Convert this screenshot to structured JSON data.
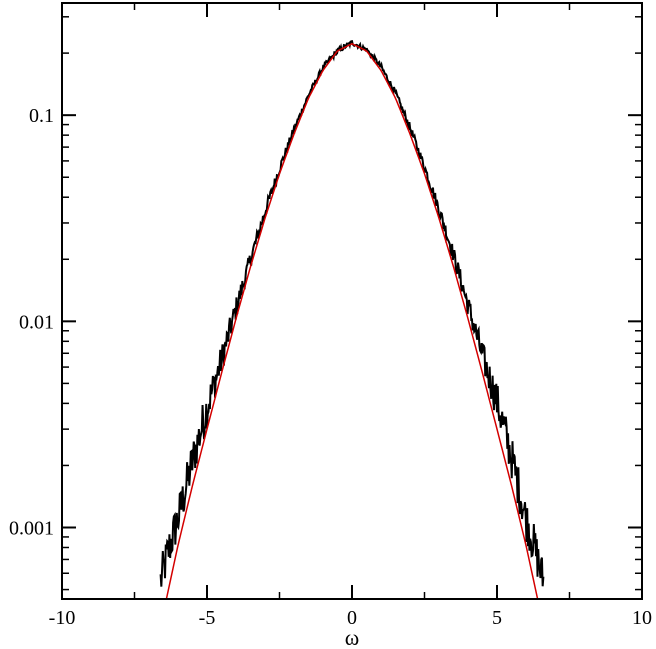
{
  "chart_data": {
    "type": "line",
    "title": "",
    "xlabel": "ω",
    "ylabel": "",
    "xlim": [
      -10,
      10
    ],
    "ylim": [
      0.00045,
      0.35
    ],
    "yscale": "log",
    "grid": false,
    "x_ticks": [
      -10,
      -5,
      0,
      5,
      10
    ],
    "x_tick_labels": [
      "-10",
      "-5",
      "0",
      "5",
      "10"
    ],
    "y_ticks": [
      0.001,
      0.01,
      0.1
    ],
    "y_tick_labels": [
      "0.001",
      "0.01",
      "0.1"
    ],
    "series": [
      {
        "color": "#000000",
        "style": "noisy histogram",
        "x": [
          -6.6,
          -6.3,
          -6.0,
          -5.5,
          -5.0,
          -4.5,
          -4.0,
          -3.5,
          -3.0,
          -2.5,
          -2.0,
          -1.5,
          -1.0,
          -0.5,
          0.0,
          0.5,
          1.0,
          1.5,
          2.0,
          2.5,
          3.0,
          3.5,
          4.0,
          4.5,
          5.0,
          5.5,
          6.0,
          6.3,
          6.6
        ],
        "y": [
          0.00055,
          0.0008,
          0.0011,
          0.0021,
          0.0038,
          0.0065,
          0.0115,
          0.02,
          0.034,
          0.055,
          0.085,
          0.125,
          0.17,
          0.205,
          0.225,
          0.208,
          0.172,
          0.128,
          0.087,
          0.056,
          0.035,
          0.021,
          0.012,
          0.0068,
          0.0041,
          0.0022,
          0.0011,
          0.0008,
          0.00055
        ]
      },
      {
        "color": "#d40000",
        "style": "smooth fit",
        "x": [
          -6.4,
          -6.0,
          -5.5,
          -5.0,
          -4.5,
          -4.0,
          -3.5,
          -3.0,
          -2.5,
          -2.0,
          -1.5,
          -1.0,
          -0.5,
          0.0,
          0.5,
          1.0,
          1.5,
          2.0,
          2.5,
          3.0,
          3.5,
          4.0,
          4.5,
          5.0,
          5.5,
          6.0,
          6.4
        ],
        "y": [
          0.00045,
          0.00082,
          0.0016,
          0.003,
          0.0056,
          0.0103,
          0.0184,
          0.0316,
          0.052,
          0.081,
          0.121,
          0.165,
          0.205,
          0.222,
          0.205,
          0.165,
          0.121,
          0.081,
          0.052,
          0.0316,
          0.0184,
          0.0103,
          0.0056,
          0.003,
          0.0016,
          0.00082,
          0.00045
        ]
      }
    ]
  }
}
